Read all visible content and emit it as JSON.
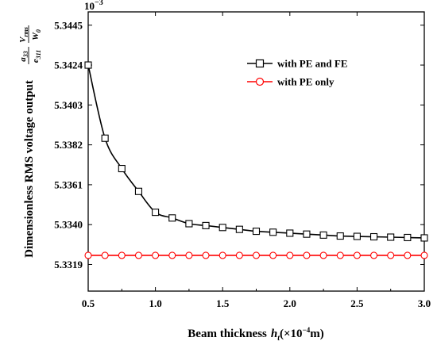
{
  "chart_data": {
    "type": "line",
    "xlabel_text": "Beam thickness",
    "xlabel_var": "h",
    "xlabel_sub": "t",
    "xlabel_unit_open": "(×10",
    "xlabel_unit_exp": "−4",
    "xlabel_unit_close": "m)",
    "ylabel_text": "Dimensionless RMS voltage output",
    "ylabel_frac_num_a": "a",
    "ylabel_frac_num_a_sub": "33",
    "ylabel_frac_den_e": "e",
    "ylabel_frac_den_e_sub": "311",
    "ylabel_frac2_num": "V",
    "ylabel_frac2_num_sub": "rms",
    "ylabel_frac2_den": "W",
    "ylabel_frac2_den_sub": "0",
    "y_multiplier_base": "10",
    "y_multiplier_exp": "−3",
    "xlim": [
      0.5,
      3.0
    ],
    "ylim": [
      5.3305,
      5.3452
    ],
    "x_ticks": [
      "0.5",
      "1.0",
      "1.5",
      "2.0",
      "2.5",
      "3.0"
    ],
    "x_tick_values": [
      0.5,
      1.0,
      1.5,
      2.0,
      2.5,
      3.0
    ],
    "y_ticks": [
      "5.3319",
      "5.3340",
      "5.3361",
      "5.3382",
      "5.3403",
      "5.3424",
      "5.3445"
    ],
    "y_tick_values": [
      5.3319,
      5.334,
      5.3361,
      5.3382,
      5.3403,
      5.3424,
      5.3445
    ],
    "legend_position": "top-right",
    "series": [
      {
        "name": "with PE and FE",
        "color": "#000000",
        "marker": "square",
        "x": [
          0.5,
          0.625,
          0.75,
          0.875,
          1.0,
          1.125,
          1.25,
          1.375,
          1.5,
          1.625,
          1.75,
          1.875,
          2.0,
          2.125,
          2.25,
          2.375,
          2.5,
          2.625,
          2.75,
          2.875,
          3.0
        ],
        "y": [
          5.3424,
          5.33855,
          5.33695,
          5.33575,
          5.33465,
          5.33435,
          5.33405,
          5.33395,
          5.33385,
          5.33375,
          5.33365,
          5.3336,
          5.33355,
          5.3335,
          5.33345,
          5.3334,
          5.33338,
          5.33336,
          5.33334,
          5.33332,
          5.3333
        ]
      },
      {
        "name": "with PE only",
        "color": "#ff0000",
        "marker": "circle",
        "x": [
          0.5,
          0.625,
          0.75,
          0.875,
          1.0,
          1.125,
          1.25,
          1.375,
          1.5,
          1.625,
          1.75,
          1.875,
          2.0,
          2.125,
          2.25,
          2.375,
          2.5,
          2.625,
          2.75,
          2.875,
          3.0
        ],
        "y": [
          5.33238,
          5.33238,
          5.33238,
          5.33238,
          5.33238,
          5.33238,
          5.33238,
          5.33238,
          5.33238,
          5.33238,
          5.33238,
          5.33238,
          5.33238,
          5.33238,
          5.33238,
          5.33238,
          5.33238,
          5.33238,
          5.33238,
          5.33238,
          5.33238
        ]
      }
    ]
  }
}
